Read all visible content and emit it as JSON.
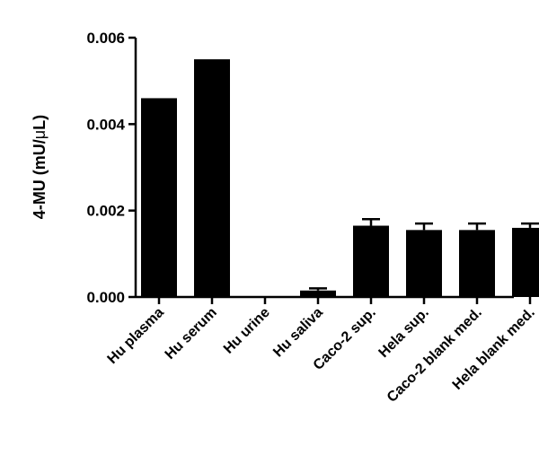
{
  "chart_data": {
    "type": "bar",
    "categories": [
      "Hu plasma",
      "Hu serum",
      "Hu urine",
      "Hu saliva",
      "Caco-2 sup.",
      "Hela sup.",
      "Caco-2 blank med.",
      "Hela blank med."
    ],
    "values": [
      0.0046,
      0.0055,
      0.0,
      0.00015,
      0.00165,
      0.00155,
      0.00155,
      0.0016
    ],
    "errors": [
      0,
      0,
      0,
      5e-05,
      0.00015,
      0.00015,
      0.00015,
      0.0001
    ],
    "ylabel_main": "4-MU (mU/",
    "ylabel_greek": "μ",
    "ylabel_end": "L)",
    "xlabel": "",
    "ylim": [
      0,
      0.006
    ],
    "yticks": [
      "0.000",
      "0.002",
      "0.004",
      "0.006"
    ],
    "grid": false,
    "bar_color": "#000000"
  }
}
